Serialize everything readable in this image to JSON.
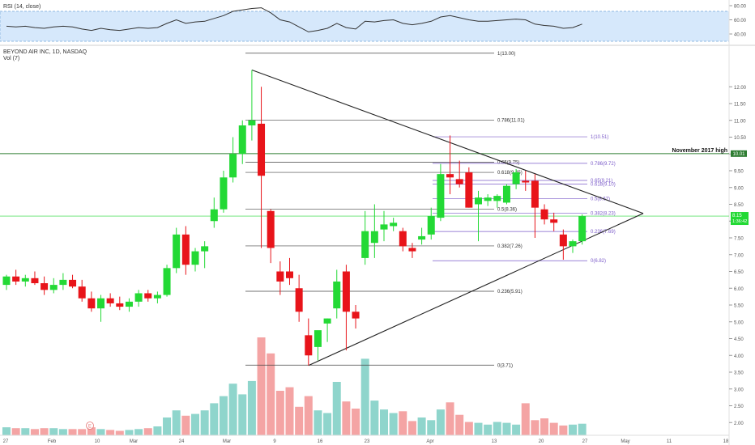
{
  "rsi_pane": {
    "title": "RSI (14, close)",
    "ticks": [
      80.0,
      60.0,
      40.0
    ],
    "tick_labels": [
      "80.00",
      "60.00",
      "40.00"
    ],
    "band": [
      30,
      70
    ],
    "colors": {
      "band_fill": "#d6e8fb",
      "band_border": "#8fb8e0",
      "line": "#333333"
    }
  },
  "price_pane": {
    "title": "BEYOND AIR INC, 1D, NASDAQ",
    "subtitle": "Vol (7)",
    "price_ticks": [
      12.0,
      11.5,
      11.0,
      10.5,
      10.0,
      9.5,
      9.0,
      8.5,
      8.0,
      7.5,
      7.0,
      6.5,
      6.0,
      5.5,
      5.0,
      4.5,
      4.0,
      3.5,
      3.0,
      2.5,
      2.0
    ],
    "price_tick_labels": [
      "12.00",
      "11.50",
      "11.00",
      "10.50",
      "10.00",
      "9.50",
      "9.00",
      "8.50",
      "8.00",
      "7.50",
      "7.00",
      "6.50",
      "6.00",
      "5.50",
      "5.00",
      "4.50",
      "4.00",
      "3.50",
      "3.00",
      "2.50",
      "2.00"
    ],
    "date_labels": [
      "27",
      "Feb",
      "10",
      "Mar",
      "24",
      "Mar",
      "9",
      "16",
      "23",
      "Apr",
      "13",
      "20",
      "27",
      "May",
      "11",
      "18"
    ],
    "annotation": "November 2017 high",
    "current_price_label": "10.01",
    "last_price_label": "8.15",
    "last_price_sub": "1:36:42",
    "earnings_marker": "E",
    "colors": {
      "up": "#23d935",
      "down": "#e8141a",
      "vol_up": "#8fd5cc",
      "vol_down": "#f4a4a4",
      "fib_major": "#444444",
      "fib_minor": "#7b5bc9",
      "nov_line": "#2e7d32",
      "nov_label_bg": "#2e7d32",
      "last_price_bg": "#23d935",
      "triangle": "#222222"
    }
  },
  "chart_data": {
    "type": "candlestick",
    "title": "BEYOND AIR INC, 1D, NASDAQ",
    "ylim": [
      1.75,
      13.1
    ],
    "x_axis_ticks": [
      "27",
      "Feb",
      "10",
      "Mar",
      "24",
      "Mar",
      "9",
      "16",
      "23",
      "Apr",
      "13",
      "20",
      "27",
      "May",
      "11",
      "18"
    ],
    "candles": [
      {
        "o": 6.1,
        "h": 6.4,
        "l": 5.95,
        "c": 6.35
      },
      {
        "o": 6.35,
        "h": 6.55,
        "l": 6.1,
        "c": 6.2
      },
      {
        "o": 6.2,
        "h": 6.4,
        "l": 6.05,
        "c": 6.3
      },
      {
        "o": 6.3,
        "h": 6.5,
        "l": 6.1,
        "c": 6.15
      },
      {
        "o": 6.15,
        "h": 6.35,
        "l": 5.8,
        "c": 5.95
      },
      {
        "o": 5.95,
        "h": 6.3,
        "l": 5.85,
        "c": 6.1
      },
      {
        "o": 6.1,
        "h": 6.45,
        "l": 5.95,
        "c": 6.25
      },
      {
        "o": 6.25,
        "h": 6.4,
        "l": 6.0,
        "c": 6.05
      },
      {
        "o": 6.05,
        "h": 6.25,
        "l": 5.6,
        "c": 5.7
      },
      {
        "o": 5.7,
        "h": 5.9,
        "l": 5.3,
        "c": 5.4
      },
      {
        "o": 5.4,
        "h": 5.8,
        "l": 5.0,
        "c": 5.7
      },
      {
        "o": 5.7,
        "h": 5.85,
        "l": 5.45,
        "c": 5.55
      },
      {
        "o": 5.55,
        "h": 5.75,
        "l": 5.35,
        "c": 5.45
      },
      {
        "o": 5.45,
        "h": 5.7,
        "l": 5.3,
        "c": 5.6
      },
      {
        "o": 5.6,
        "h": 5.95,
        "l": 5.45,
        "c": 5.85
      },
      {
        "o": 5.85,
        "h": 5.95,
        "l": 5.6,
        "c": 5.7
      },
      {
        "o": 5.7,
        "h": 5.9,
        "l": 5.55,
        "c": 5.8
      },
      {
        "o": 5.8,
        "h": 6.7,
        "l": 5.75,
        "c": 6.6
      },
      {
        "o": 6.6,
        "h": 7.8,
        "l": 6.45,
        "c": 7.6
      },
      {
        "o": 7.6,
        "h": 7.85,
        "l": 6.4,
        "c": 6.7
      },
      {
        "o": 6.7,
        "h": 7.2,
        "l": 6.5,
        "c": 7.1
      },
      {
        "o": 7.1,
        "h": 7.4,
        "l": 6.6,
        "c": 7.25
      },
      {
        "o": 8.0,
        "h": 8.7,
        "l": 7.8,
        "c": 8.35
      },
      {
        "o": 8.35,
        "h": 9.5,
        "l": 8.25,
        "c": 9.3
      },
      {
        "o": 9.3,
        "h": 10.5,
        "l": 9.15,
        "c": 10.0
      },
      {
        "o": 10.0,
        "h": 11.0,
        "l": 9.7,
        "c": 10.85
      },
      {
        "o": 10.85,
        "h": 12.5,
        "l": 10.4,
        "c": 11.0
      },
      {
        "o": 10.9,
        "h": 12.0,
        "l": 7.2,
        "c": 9.35
      },
      {
        "o": 8.3,
        "h": 8.35,
        "l": 6.75,
        "c": 7.2
      },
      {
        "o": 6.5,
        "h": 6.8,
        "l": 5.8,
        "c": 6.2
      },
      {
        "o": 6.5,
        "h": 6.9,
        "l": 6.1,
        "c": 6.3
      },
      {
        "o": 6.0,
        "h": 6.4,
        "l": 5.0,
        "c": 5.3
      },
      {
        "o": 4.6,
        "h": 5.1,
        "l": 3.7,
        "c": 4.0
      },
      {
        "o": 4.25,
        "h": 4.7,
        "l": 3.85,
        "c": 4.75
      },
      {
        "o": 4.95,
        "h": 5.1,
        "l": 4.4,
        "c": 5.1
      },
      {
        "o": 5.4,
        "h": 6.55,
        "l": 5.1,
        "c": 6.2
      },
      {
        "o": 6.5,
        "h": 6.7,
        "l": 4.15,
        "c": 5.3
      },
      {
        "o": 5.3,
        "h": 5.5,
        "l": 4.8,
        "c": 5.1
      },
      {
        "o": 6.9,
        "h": 8.3,
        "l": 6.7,
        "c": 7.7
      },
      {
        "o": 7.35,
        "h": 8.5,
        "l": 6.9,
        "c": 7.7
      },
      {
        "o": 7.75,
        "h": 8.3,
        "l": 7.4,
        "c": 7.9
      },
      {
        "o": 7.85,
        "h": 8.1,
        "l": 7.7,
        "c": 7.95
      },
      {
        "o": 7.7,
        "h": 7.8,
        "l": 7.1,
        "c": 7.25
      },
      {
        "o": 7.2,
        "h": 7.35,
        "l": 6.9,
        "c": 7.1
      },
      {
        "o": 7.45,
        "h": 7.8,
        "l": 7.3,
        "c": 7.55
      },
      {
        "o": 7.6,
        "h": 8.4,
        "l": 7.45,
        "c": 8.15
      },
      {
        "o": 8.1,
        "h": 9.7,
        "l": 8.0,
        "c": 9.4
      },
      {
        "o": 9.4,
        "h": 10.55,
        "l": 8.8,
        "c": 9.3
      },
      {
        "o": 9.25,
        "h": 9.8,
        "l": 9.0,
        "c": 9.1
      },
      {
        "o": 9.45,
        "h": 9.6,
        "l": 8.4,
        "c": 8.4
      },
      {
        "o": 8.5,
        "h": 8.9,
        "l": 7.4,
        "c": 8.7
      },
      {
        "o": 8.6,
        "h": 8.8,
        "l": 8.45,
        "c": 8.7
      },
      {
        "o": 8.6,
        "h": 8.8,
        "l": 8.4,
        "c": 8.75
      },
      {
        "o": 8.55,
        "h": 9.1,
        "l": 8.5,
        "c": 9.05
      },
      {
        "o": 9.1,
        "h": 9.55,
        "l": 8.95,
        "c": 9.45
      },
      {
        "o": 9.2,
        "h": 9.5,
        "l": 8.9,
        "c": 9.15
      },
      {
        "o": 9.2,
        "h": 9.4,
        "l": 7.5,
        "c": 8.4
      },
      {
        "o": 8.35,
        "h": 8.5,
        "l": 7.9,
        "c": 8.05
      },
      {
        "o": 8.05,
        "h": 8.25,
        "l": 7.7,
        "c": 7.95
      },
      {
        "o": 7.6,
        "h": 7.75,
        "l": 6.85,
        "c": 7.25
      },
      {
        "o": 7.25,
        "h": 7.45,
        "l": 7.05,
        "c": 7.4
      },
      {
        "o": 7.4,
        "h": 8.2,
        "l": 7.3,
        "c": 8.15
      }
    ],
    "volumes": [
      0.9,
      0.8,
      0.8,
      0.7,
      0.8,
      0.8,
      0.7,
      0.7,
      0.7,
      0.9,
      0.7,
      0.6,
      0.5,
      0.6,
      0.7,
      0.8,
      1.0,
      2.0,
      2.8,
      2.2,
      2.4,
      2.8,
      3.6,
      4.4,
      5.8,
      4.6,
      6.1,
      11.0,
      9.2,
      5.0,
      5.4,
      3.2,
      4.4,
      2.8,
      2.5,
      6.0,
      3.8,
      3.0,
      8.6,
      3.9,
      2.9,
      2.5,
      2.7,
      1.6,
      2.0,
      1.7,
      2.9,
      3.7,
      2.3,
      1.5,
      1.4,
      1.2,
      1.5,
      1.4,
      1.2,
      3.6,
      1.7,
      1.9,
      1.4,
      1.1,
      1.2,
      1.3
    ],
    "rsi": [
      51,
      50,
      51,
      49,
      48,
      50,
      51,
      50,
      47,
      45,
      48,
      46,
      45,
      47,
      49,
      48,
      49,
      55,
      60,
      55,
      57,
      58,
      62,
      66,
      72,
      74,
      76,
      77,
      70,
      60,
      57,
      50,
      43,
      45,
      48,
      55,
      49,
      47,
      58,
      57,
      59,
      60,
      55,
      53,
      55,
      58,
      64,
      66,
      63,
      60,
      58,
      58,
      59,
      60,
      61,
      60,
      54,
      52,
      51,
      48,
      49,
      54
    ],
    "fib_left": [
      {
        "label": "1(13.00)",
        "value": 13.0
      },
      {
        "label": "0.786(11.01)",
        "value": 11.01
      },
      {
        "label": "0.65(9.75)",
        "value": 9.75
      },
      {
        "label": "0.618(9.45)",
        "value": 9.45
      },
      {
        "label": "0.5(8.36)",
        "value": 8.36
      },
      {
        "label": "0.382(7.26)",
        "value": 7.26
      },
      {
        "label": "0.236(5.91)",
        "value": 5.91
      },
      {
        "label": "0(3.71)",
        "value": 3.71
      }
    ],
    "fib_right": [
      {
        "label": "1(10.51)",
        "value": 10.51
      },
      {
        "label": "0.786(9.72)",
        "value": 9.72
      },
      {
        "label": "0.65(9.21)",
        "value": 9.21
      },
      {
        "label": "0.618(9.10)",
        "value": 9.1
      },
      {
        "label": "0.5(8.67)",
        "value": 8.67
      },
      {
        "label": "0.382(8.23)",
        "value": 8.23
      },
      {
        "label": "0.236(7.69)",
        "value": 7.69
      },
      {
        "label": "0(6.82)",
        "value": 6.82
      }
    ],
    "november_2017_high": 10.01,
    "last_price": 8.15,
    "triangle": {
      "top": {
        "index": 26,
        "price": 12.5
      },
      "bottom": {
        "index": 32,
        "price": 3.7
      },
      "apex_price": 8.23
    }
  }
}
